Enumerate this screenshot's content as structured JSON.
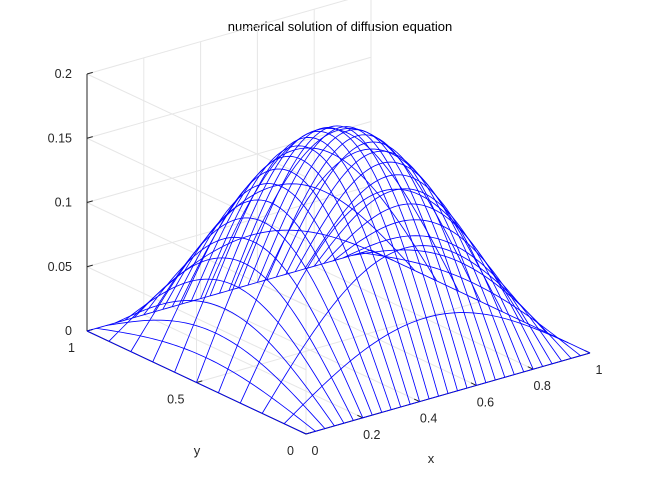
{
  "chart_data": {
    "type": "surface-mesh",
    "title": "numerical solution of diffusion equation",
    "xlabel": "x",
    "ylabel": "y",
    "zlabel": "",
    "xlim": [
      0,
      1
    ],
    "ylim": [
      0,
      1
    ],
    "zlim": [
      0,
      0.2
    ],
    "x_ticks": [
      "0",
      "0.2",
      "0.4",
      "0.6",
      "0.8",
      "1"
    ],
    "y_ticks": [
      "0",
      "0.5",
      "1"
    ],
    "z_ticks": [
      "0",
      "0.05",
      "0.1",
      "0.15",
      "0.2"
    ],
    "grid": true,
    "view": "default 3-D (azimuth -37.5, elevation 30)",
    "mesh": {
      "function": "z = peak * sin(pi*x) * sin(pi*y)",
      "peak": 0.165,
      "nx": 31,
      "ny": 11
    },
    "colors": {
      "mesh": "#0000ff",
      "axes": "#262626",
      "grid": "#e6e6e6"
    }
  }
}
